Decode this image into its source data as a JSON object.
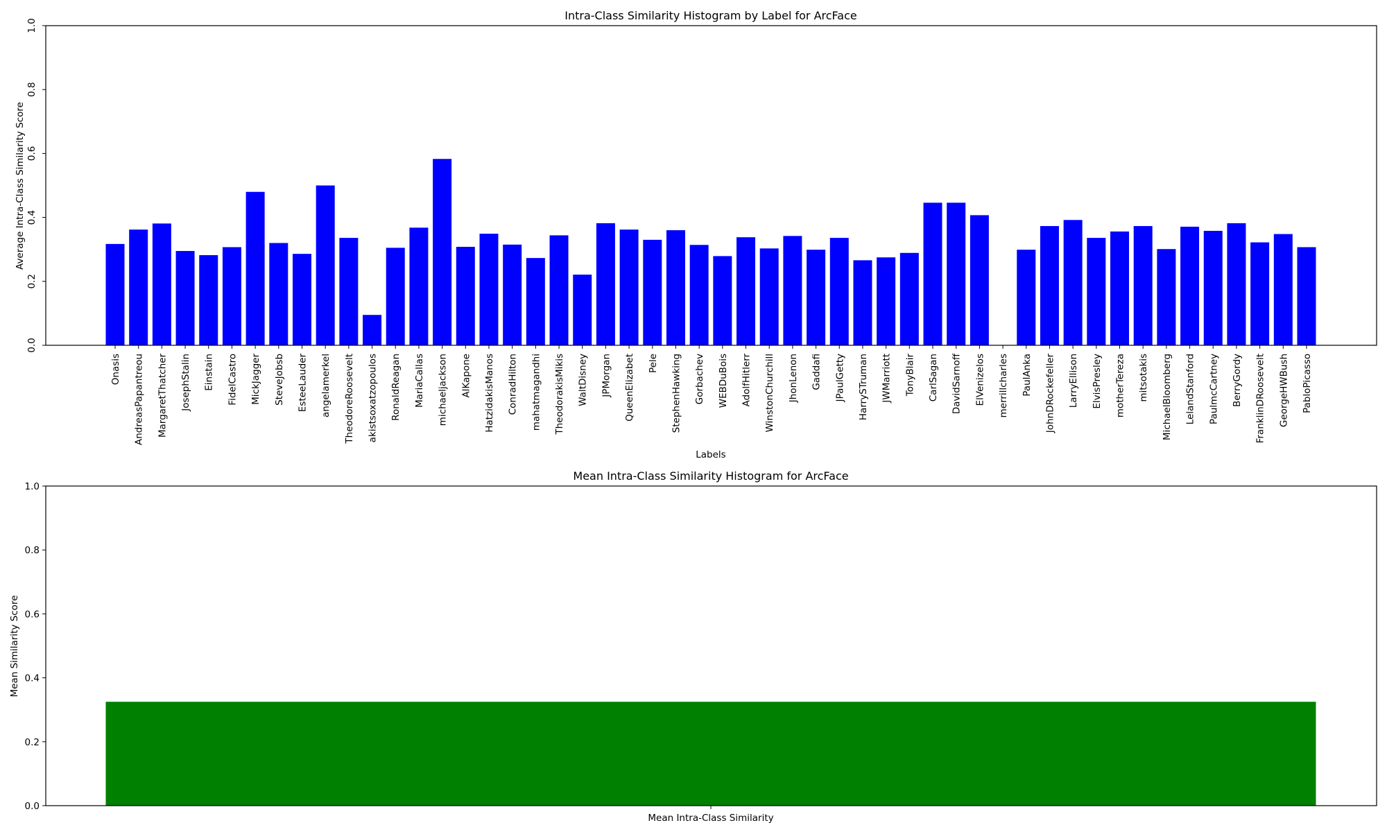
{
  "chart_data": [
    {
      "type": "bar",
      "title": "Intra-Class Similarity Histogram by Label for ArcFace",
      "xlabel": "Labels",
      "ylabel": "Average Intra-Class Similarity Score",
      "ylim": [
        0,
        1.0
      ],
      "yticks": [
        "0.0",
        "0.2",
        "0.4",
        "0.6",
        "0.8",
        "1.0"
      ],
      "bar_color": "#0000ff",
      "categories": [
        "Onasis",
        "AndreasPapantreou",
        "MargaretThatcher",
        "JosephStalin",
        "Einstain",
        "FidelCastro",
        "MickJagger",
        "SteveJobsb",
        "EsteeLauder",
        "angelamerkel",
        "TheodoreRoosevelt",
        "akistsoxatzopoulos",
        "RonaldReagan",
        "MariaCallas",
        "michaeljackson",
        "AlKapone",
        "HatzidakisManos",
        "ConradHilton",
        "mahatmagandhi",
        "TheodorakisMikis",
        "WaltDisney",
        "JPMorgan",
        "QueenElizabet",
        "Pele",
        "StephenHawking",
        "Gorbachev",
        "WEBDuBois",
        "AdolfHitlerr",
        "WinstonChurchill",
        "JhonLenon",
        "Gaddafi",
        "JPaulGetty",
        "HarrySTruman",
        "JWMarriott",
        "TonyBlair",
        "CarlSagan",
        "DavidSarnoff",
        "ElVenizelos",
        "merrillcharles",
        "PaulAnka",
        "JohnDRockefeller",
        "LarryEllison",
        "ElvisPresley",
        "motherTereza",
        "mitsotakis",
        "MichaelBloomberg",
        "LelandStanford",
        "PaulmcCartney",
        "BerryGordy",
        "FranklinDRoosevelt",
        "GeorgeHWBush",
        "PabloPicasso"
      ],
      "values": [
        0.317,
        0.362,
        0.381,
        0.295,
        0.282,
        0.307,
        0.48,
        0.32,
        0.286,
        0.5,
        0.336,
        0.095,
        0.305,
        0.368,
        0.583,
        0.308,
        0.349,
        0.315,
        0.273,
        0.344,
        0.221,
        0.382,
        0.362,
        0.33,
        0.36,
        0.314,
        0.279,
        0.338,
        0.303,
        0.342,
        0.299,
        0.336,
        0.266,
        0.275,
        0.289,
        0.446,
        0.446,
        0.407,
        0.0,
        0.299,
        0.373,
        0.392,
        0.336,
        0.356,
        0.373,
        0.301,
        0.371,
        0.358,
        0.382,
        0.322,
        0.348,
        0.307
      ]
    },
    {
      "type": "bar",
      "title": "Mean Intra-Class Similarity Histogram for ArcFace",
      "xlabel": "",
      "ylabel": "Mean Similarity Score",
      "ylim": [
        0,
        1.0
      ],
      "yticks": [
        "0.0",
        "0.2",
        "0.4",
        "0.6",
        "0.8",
        "1.0"
      ],
      "bar_color": "#008000",
      "categories": [
        "Mean Intra-Class Similarity"
      ],
      "values": [
        0.325
      ]
    }
  ]
}
